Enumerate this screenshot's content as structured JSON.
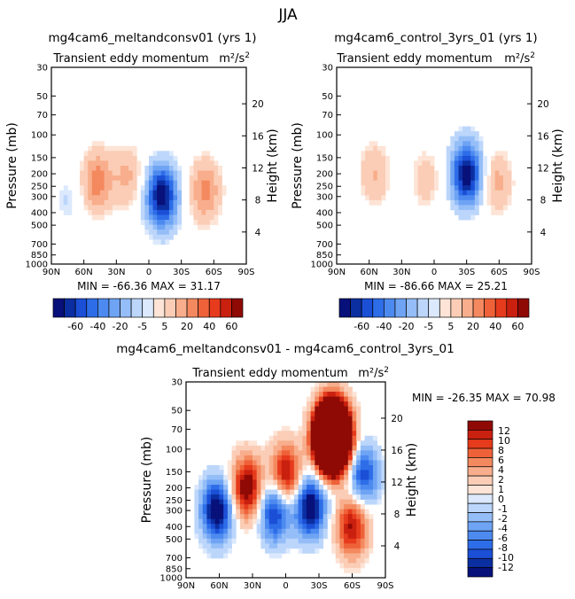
{
  "page_title": "JJA",
  "colors": {
    "neg": [
      "#08107a",
      "#0b2ea0",
      "#1a4fd6",
      "#2e6de8",
      "#4d8af0",
      "#6fa4f4",
      "#95bef8",
      "#bcd6fb",
      "#dce9fd"
    ],
    "pos": [
      "#fde4d6",
      "#fbcdb6",
      "#f8ae8c",
      "#f4895f",
      "#ef6239",
      "#e63b1c",
      "#c9200f",
      "#8f0a05"
    ],
    "frame": "#000000"
  },
  "chart_data": [
    {
      "type": "contour",
      "title": "mg4cam6_meltandconsv01 (yrs 1)",
      "subtitle": "Transient eddy momentum",
      "units": "m²/s²",
      "xlabel": "",
      "ylabel": "Pressure (mb)",
      "ylabel_right": "Height (km)",
      "x_ticks": [
        "90N",
        "60N",
        "30N",
        "0",
        "30S",
        "60S",
        "90S"
      ],
      "y_ticks": [
        "30",
        "50",
        "70",
        "100",
        "150",
        "200",
        "250",
        "300",
        "400",
        "500",
        "700",
        "850",
        "1000"
      ],
      "height_ticks": [
        "4",
        "8",
        "12",
        "16",
        "20"
      ],
      "stats": {
        "min_label": "MIN =",
        "min": "-66.36",
        "max_label": "MAX =",
        "max": "31.17"
      },
      "colorbar_labels": [
        "-60",
        "-40",
        "-20",
        "-5",
        "5",
        "20",
        "40",
        "60"
      ],
      "features": [
        {
          "lat": 48,
          "p": 230,
          "value": 30
        },
        {
          "lat": 20,
          "p": 210,
          "value": 18
        },
        {
          "lat": -12,
          "p": 300,
          "value": -66
        },
        {
          "lat": -52,
          "p": 270,
          "value": 28
        },
        {
          "lat": 75,
          "p": 320,
          "value": -8
        }
      ]
    },
    {
      "type": "contour",
      "title": "mg4cam6_control_3yrs_01 (yrs 1)",
      "subtitle": "Transient eddy momentum",
      "units": "m²/s²",
      "xlabel": "",
      "ylabel": "Pressure (mb)",
      "ylabel_right": "Height (km)",
      "x_ticks": [
        "90N",
        "60N",
        "30N",
        "0",
        "30S",
        "60S",
        "90S"
      ],
      "y_ticks": [
        "30",
        "50",
        "70",
        "100",
        "150",
        "200",
        "250",
        "300",
        "400",
        "500",
        "700",
        "850",
        "1000"
      ],
      "height_ticks": [
        "4",
        "8",
        "12",
        "16",
        "20"
      ],
      "stats": {
        "min_label": "MIN =",
        "min": "-86.66",
        "max_label": "MAX =",
        "max": "25.21"
      },
      "colorbar_labels": [
        "-60",
        "-40",
        "-20",
        "-5",
        "5",
        "20",
        "40",
        "60"
      ],
      "features": [
        {
          "lat": 55,
          "p": 200,
          "value": 22
        },
        {
          "lat": 8,
          "p": 220,
          "value": 16
        },
        {
          "lat": -30,
          "p": 200,
          "value": -86
        },
        {
          "lat": -58,
          "p": 230,
          "value": 25
        }
      ]
    },
    {
      "type": "contour",
      "title": "mg4cam6_meltandconsv01 - mg4cam6_control_3yrs_01",
      "subtitle": "Transient eddy momentum",
      "units": "m²/s²",
      "xlabel": "",
      "ylabel": "Pressure (mb)",
      "ylabel_right": "Height (km)",
      "x_ticks": [
        "90N",
        "60N",
        "30N",
        "0",
        "30S",
        "60S",
        "90S"
      ],
      "y_ticks": [
        "30",
        "50",
        "70",
        "100",
        "150",
        "200",
        "250",
        "300",
        "400",
        "500",
        "700",
        "850",
        "1000"
      ],
      "height_ticks": [
        "4",
        "8",
        "12",
        "16",
        "20"
      ],
      "stats": {
        "min_label": "MIN =",
        "min": "-26.35",
        "max_label": "MAX =",
        "max": "70.98"
      },
      "colorbar_labels": [
        "12",
        "10",
        "8",
        "6",
        "4",
        "2",
        "1",
        "0",
        "-1",
        "-2",
        "-4",
        "-6",
        "-8",
        "-10",
        "-12"
      ],
      "features": [
        {
          "lat": 62,
          "p": 300,
          "value": -14
        },
        {
          "lat": 35,
          "p": 200,
          "value": 14
        },
        {
          "lat": 0,
          "p": 160,
          "value": 13
        },
        {
          "lat": 10,
          "p": 300,
          "value": -12
        },
        {
          "lat": -22,
          "p": 280,
          "value": -14
        },
        {
          "lat": -42,
          "p": 80,
          "value": 70
        },
        {
          "lat": -70,
          "p": 160,
          "value": -10
        },
        {
          "lat": -60,
          "p": 400,
          "value": 12
        }
      ]
    }
  ]
}
